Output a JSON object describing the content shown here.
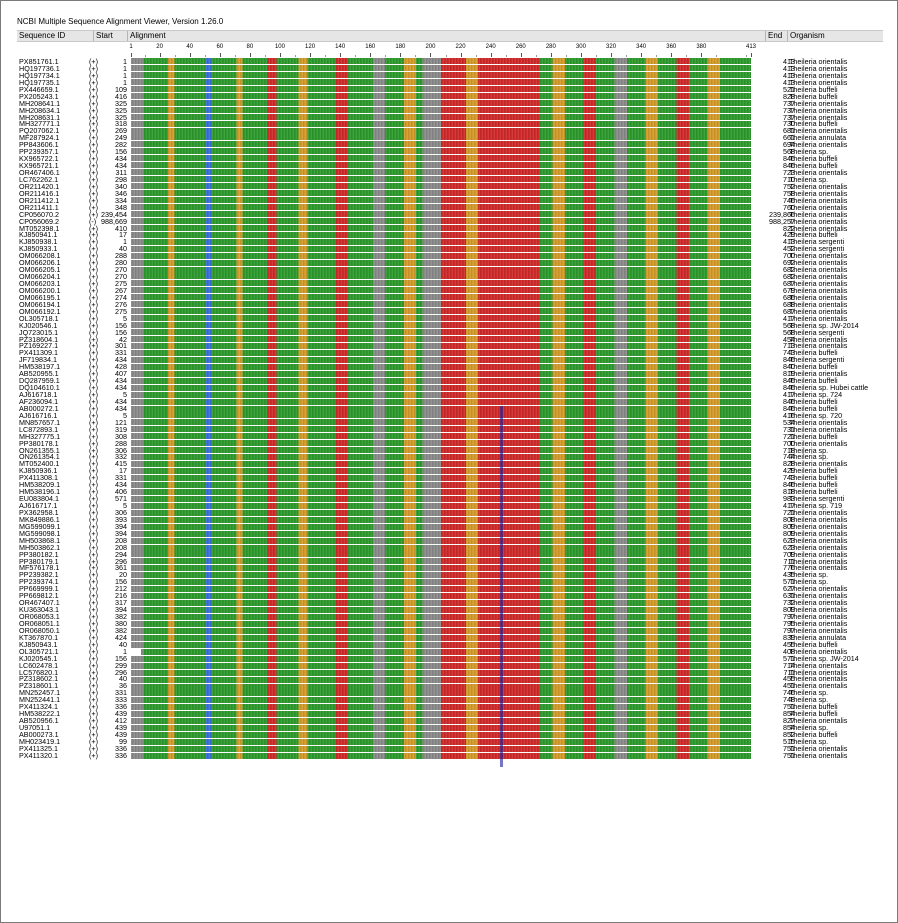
{
  "window": {
    "title": "NCBI Multiple Sequence Alignment Viewer, Version 1.26.0"
  },
  "columns": {
    "seqid": "Sequence ID",
    "start": "Start",
    "alignment": "Alignment",
    "end": "End",
    "organism": "Organism"
  },
  "ruler": {
    "labels": [
      "1",
      "20",
      "40",
      "60",
      "80",
      "100",
      "120",
      "140",
      "160",
      "180",
      "200",
      "220",
      "240",
      "260",
      "280",
      "300",
      "320",
      "340",
      "360",
      "380",
      "413"
    ]
  },
  "colors": {
    "A": "#2e9a2e",
    "C": "#3a6fd8",
    "G": "#d29a2a",
    "T": "#cf2b2b",
    "mix": "#8a8a8a",
    "lightA": "#6fcf6f",
    "lightT": "#e05a5a",
    "gap": "#ffffff",
    "marker": "#1a1aa0"
  },
  "rows": [
    {
      "id": "PX851761.1",
      "strand": "(+)",
      "start": "1",
      "end": "413",
      "org": "Theileria orientalis"
    },
    {
      "id": "HQ197736.1",
      "strand": "(+)",
      "start": "1",
      "end": "413",
      "org": "Theileria orientalis"
    },
    {
      "id": "HQ197734.1",
      "strand": "(+)",
      "start": "1",
      "end": "413",
      "org": "Theileria orientalis"
    },
    {
      "id": "HQ197735.1",
      "strand": "(+)",
      "start": "1",
      "end": "413",
      "org": "Theileria orientalis"
    },
    {
      "id": "PX446659.1",
      "strand": "(+)",
      "start": "109",
      "end": "521",
      "org": "Theileria buffeli"
    },
    {
      "id": "PX205243.1",
      "strand": "(+)",
      "start": "416",
      "end": "828",
      "org": "Theileria buffeli"
    },
    {
      "id": "MH208641.1",
      "strand": "(+)",
      "start": "325",
      "end": "737",
      "org": "Theileria orientalis"
    },
    {
      "id": "MH208634.1",
      "strand": "(+)",
      "start": "325",
      "end": "737",
      "org": "Theileria orientalis"
    },
    {
      "id": "MH208631.1",
      "strand": "(+)",
      "start": "325",
      "end": "737",
      "org": "Theileria orientalis"
    },
    {
      "id": "MH327771.1",
      "strand": "(+)",
      "start": "318",
      "end": "730",
      "org": "Theileria buffeli"
    },
    {
      "id": "PQ207062.1",
      "strand": "(+)",
      "start": "269",
      "end": "681",
      "org": "Theileria orientalis"
    },
    {
      "id": "MF287924.1",
      "strand": "(+)",
      "start": "249",
      "end": "661",
      "org": "Theileria annulata"
    },
    {
      "id": "PP843606.1",
      "strand": "(+)",
      "start": "282",
      "end": "694",
      "org": "Theileria orientalis"
    },
    {
      "id": "PP239357.1",
      "strand": "(+)",
      "start": "156",
      "end": "568",
      "org": "Theileria sp."
    },
    {
      "id": "KX965722.1",
      "strand": "(+)",
      "start": "434",
      "end": "846",
      "org": "Theileria buffeli"
    },
    {
      "id": "KX965721.1",
      "strand": "(+)",
      "start": "434",
      "end": "846",
      "org": "Theileria buffeli"
    },
    {
      "id": "OR467406.1",
      "strand": "(+)",
      "start": "311",
      "end": "723",
      "org": "Theileria orientalis"
    },
    {
      "id": "LC762262.1",
      "strand": "(+)",
      "start": "298",
      "end": "710",
      "org": "Theileria sp."
    },
    {
      "id": "OR211420.1",
      "strand": "(+)",
      "start": "340",
      "end": "752",
      "org": "Theileria orientalis"
    },
    {
      "id": "OR211416.1",
      "strand": "(+)",
      "start": "346",
      "end": "758",
      "org": "Theileria orientalis"
    },
    {
      "id": "OR211412.1",
      "strand": "(+)",
      "start": "334",
      "end": "746",
      "org": "Theileria orientalis"
    },
    {
      "id": "OR211411.1",
      "strand": "(+)",
      "start": "348",
      "end": "760",
      "org": "Theileria orientalis"
    },
    {
      "id": "CP056070.2",
      "strand": "(+)",
      "start": "239,454",
      "end": "239,866",
      "org": "Theileria orientalis"
    },
    {
      "id": "CP056069.2",
      "strand": "(-)",
      "start": "988,669",
      "end": "988,257",
      "org": "Theileria orientalis"
    },
    {
      "id": "MT052398.1",
      "strand": "(+)",
      "start": "410",
      "end": "822",
      "org": "Theileria orientalis"
    },
    {
      "id": "KJ850941.1",
      "strand": "(+)",
      "start": "17",
      "end": "429",
      "org": "Theileria buffeli"
    },
    {
      "id": "KJ850938.1",
      "strand": "(+)",
      "start": "1",
      "end": "413",
      "org": "Theileria sergenti"
    },
    {
      "id": "KJ850933.1",
      "strand": "(+)",
      "start": "40",
      "end": "452",
      "org": "Theileria sergenti"
    },
    {
      "id": "OM066208.1",
      "strand": "(+)",
      "start": "288",
      "end": "700",
      "org": "Theileria orientalis"
    },
    {
      "id": "OM066206.1",
      "strand": "(+)",
      "start": "280",
      "end": "692",
      "org": "Theileria orientalis"
    },
    {
      "id": "OM066205.1",
      "strand": "(+)",
      "start": "270",
      "end": "682",
      "org": "Theileria orientalis"
    },
    {
      "id": "OM066204.1",
      "strand": "(+)",
      "start": "270",
      "end": "682",
      "org": "Theileria orientalis"
    },
    {
      "id": "OM066203.1",
      "strand": "(+)",
      "start": "275",
      "end": "687",
      "org": "Theileria orientalis"
    },
    {
      "id": "OM066200.1",
      "strand": "(+)",
      "start": "267",
      "end": "679",
      "org": "Theileria orientalis"
    },
    {
      "id": "OM066195.1",
      "strand": "(+)",
      "start": "274",
      "end": "686",
      "org": "Theileria orientalis"
    },
    {
      "id": "OM066194.1",
      "strand": "(+)",
      "start": "276",
      "end": "688",
      "org": "Theileria orientalis"
    },
    {
      "id": "OM066192.1",
      "strand": "(+)",
      "start": "275",
      "end": "687",
      "org": "Theileria orientalis"
    },
    {
      "id": "OL305718.1",
      "strand": "(+)",
      "start": "5",
      "end": "417",
      "org": "Theileria orientalis"
    },
    {
      "id": "KJ020546.1",
      "strand": "(+)",
      "start": "156",
      "end": "568",
      "org": "Theileria sp. JW-2014"
    },
    {
      "id": "JQ723015.1",
      "strand": "(+)",
      "start": "156",
      "end": "568",
      "org": "Theileria sergenti"
    },
    {
      "id": "PZ318604.1",
      "strand": "(+)",
      "start": "42",
      "end": "454",
      "org": "Theileria orientalis"
    },
    {
      "id": "PZ169227.1",
      "strand": "(+)",
      "start": "301",
      "end": "713",
      "org": "Theileria orientalis"
    },
    {
      "id": "PX411309.1",
      "strand": "(+)",
      "start": "331",
      "end": "743",
      "org": "Theileria buffeli"
    },
    {
      "id": "JF719834.1",
      "strand": "(+)",
      "start": "434",
      "end": "846",
      "org": "Theileria sergenti"
    },
    {
      "id": "HM538197.1",
      "strand": "(+)",
      "start": "428",
      "end": "840",
      "org": "Theileria buffeli"
    },
    {
      "id": "AB520955.1",
      "strand": "(+)",
      "start": "407",
      "end": "819",
      "org": "Theileria orientalis"
    },
    {
      "id": "DQ287959.1",
      "strand": "(+)",
      "start": "434",
      "end": "846",
      "org": "Theileria buffeli"
    },
    {
      "id": "DQ104610.1",
      "strand": "(+)",
      "start": "434",
      "end": "846",
      "org": "Theileria sp. Hubei cattle"
    },
    {
      "id": "AJ616718.1",
      "strand": "(+)",
      "start": "5",
      "end": "417",
      "org": "Theileria sp. 724"
    },
    {
      "id": "AF236094.1",
      "strand": "(+)",
      "start": "434",
      "end": "846",
      "org": "Theileria buffeli"
    },
    {
      "id": "AB000272.1",
      "strand": "(+)",
      "start": "434",
      "end": "846",
      "org": "Theileria buffeli"
    },
    {
      "id": "AJ616716.1",
      "strand": "(+)",
      "start": "5",
      "end": "416",
      "org": "Theileria sp. 720"
    },
    {
      "id": "MN857657.1",
      "strand": "(+)",
      "start": "121",
      "end": "534",
      "org": "Theileria orientalis"
    },
    {
      "id": "LC872893.1",
      "strand": "(+)",
      "start": "319",
      "end": "731",
      "org": "Theileria orientalis"
    },
    {
      "id": "MH327775.1",
      "strand": "(+)",
      "start": "308",
      "end": "721",
      "org": "Theileria buffeli"
    },
    {
      "id": "PP380178.1",
      "strand": "(+)",
      "start": "288",
      "end": "700",
      "org": "Theileria orientalis"
    },
    {
      "id": "ON261355.1",
      "strand": "(+)",
      "start": "306",
      "end": "718",
      "org": "Theileria sp."
    },
    {
      "id": "ON261354.1",
      "strand": "(+)",
      "start": "332",
      "end": "744",
      "org": "Theileria sp."
    },
    {
      "id": "MT052400.1",
      "strand": "(+)",
      "start": "415",
      "end": "828",
      "org": "Theileria orientalis"
    },
    {
      "id": "KJ850936.1",
      "strand": "(+)",
      "start": "17",
      "end": "429",
      "org": "Theileria buffeli"
    },
    {
      "id": "PX411308.1",
      "strand": "(+)",
      "start": "331",
      "end": "743",
      "org": "Theileria buffeli"
    },
    {
      "id": "HM538209.1",
      "strand": "(+)",
      "start": "434",
      "end": "846",
      "org": "Theileria buffeli"
    },
    {
      "id": "HM538196.1",
      "strand": "(+)",
      "start": "406",
      "end": "818",
      "org": "Theileria buffeli"
    },
    {
      "id": "EU083804.1",
      "strand": "(+)",
      "start": "571",
      "end": "983",
      "org": "Theileria sergenti"
    },
    {
      "id": "AJ616717.1",
      "strand": "(+)",
      "start": "5",
      "end": "417",
      "org": "Theileria sp. 719"
    },
    {
      "id": "PX362958.1",
      "strand": "(+)",
      "start": "306",
      "end": "721",
      "org": "Theileria orientalis"
    },
    {
      "id": "MK849886.1",
      "strand": "(+)",
      "start": "393",
      "end": "808",
      "org": "Theileria orientalis"
    },
    {
      "id": "MG599099.1",
      "strand": "(+)",
      "start": "394",
      "end": "809",
      "org": "Theileria orientalis"
    },
    {
      "id": "MG599098.1",
      "strand": "(+)",
      "start": "394",
      "end": "809",
      "org": "Theileria orientalis"
    },
    {
      "id": "MH503868.1",
      "strand": "(+)",
      "start": "208",
      "end": "623",
      "org": "Theileria orientalis"
    },
    {
      "id": "MH503862.1",
      "strand": "(+)",
      "start": "208",
      "end": "623",
      "org": "Theileria orientalis"
    },
    {
      "id": "PP380182.1",
      "strand": "(+)",
      "start": "294",
      "end": "709",
      "org": "Theileria orientalis"
    },
    {
      "id": "PP380179.1",
      "strand": "(+)",
      "start": "296",
      "end": "711",
      "org": "Theileria orientalis"
    },
    {
      "id": "MF576178.1",
      "strand": "(+)",
      "start": "361",
      "end": "776",
      "org": "Theileria orientalis"
    },
    {
      "id": "PP239382.1",
      "strand": "(+)",
      "start": "20",
      "end": "435",
      "org": "Theileria sp."
    },
    {
      "id": "PP239374.1",
      "strand": "(+)",
      "start": "156",
      "end": "571",
      "org": "Theileria sp."
    },
    {
      "id": "PP669999.1",
      "strand": "(+)",
      "start": "212",
      "end": "627",
      "org": "Theileria orientalis"
    },
    {
      "id": "PP669812.1",
      "strand": "(+)",
      "start": "216",
      "end": "631",
      "org": "Theileria orientalis"
    },
    {
      "id": "OR467407.1",
      "strand": "(+)",
      "start": "317",
      "end": "732",
      "org": "Theileria orientalis"
    },
    {
      "id": "KU363043.1",
      "strand": "(+)",
      "start": "394",
      "end": "809",
      "org": "Theileria orientalis"
    },
    {
      "id": "OR068053.1",
      "strand": "(+)",
      "start": "382",
      "end": "797",
      "org": "Theileria orientalis"
    },
    {
      "id": "OR068051.1",
      "strand": "(+)",
      "start": "380",
      "end": "795",
      "org": "Theileria orientalis"
    },
    {
      "id": "OR068050.1",
      "strand": "(+)",
      "start": "382",
      "end": "797",
      "org": "Theileria orientalis"
    },
    {
      "id": "KT367870.1",
      "strand": "(+)",
      "start": "424",
      "end": "839",
      "org": "Theileria annulata"
    },
    {
      "id": "KJ850943.1",
      "strand": "(+)",
      "start": "40",
      "end": "455",
      "org": "Theileria buffeli"
    },
    {
      "id": "OL305721.1",
      "strand": "(+)",
      "start": "1",
      "end": "408",
      "org": "Theileria orientalis"
    },
    {
      "id": "KJ020545.1",
      "strand": "(+)",
      "start": "156",
      "end": "571",
      "org": "Theileria sp. JW-2014"
    },
    {
      "id": "LC602478.1",
      "strand": "(+)",
      "start": "299",
      "end": "714",
      "org": "Theileria orientalis"
    },
    {
      "id": "LC576820.1",
      "strand": "(+)",
      "start": "296",
      "end": "711",
      "org": "Theileria orientalis"
    },
    {
      "id": "PZ318602.1",
      "strand": "(+)",
      "start": "40",
      "end": "455",
      "org": "Theileria orientalis"
    },
    {
      "id": "PZ318601.1",
      "strand": "(+)",
      "start": "36",
      "end": "451",
      "org": "Theileria orientalis"
    },
    {
      "id": "MN252457.1",
      "strand": "(+)",
      "start": "331",
      "end": "746",
      "org": "Theileria sp."
    },
    {
      "id": "MN252441.1",
      "strand": "(+)",
      "start": "333",
      "end": "748",
      "org": "Theileria sp."
    },
    {
      "id": "PX411324.1",
      "strand": "(+)",
      "start": "336",
      "end": "751",
      "org": "Theileria buffeli"
    },
    {
      "id": "HM538222.1",
      "strand": "(+)",
      "start": "439",
      "end": "854",
      "org": "Theileria buffeli"
    },
    {
      "id": "AB520956.1",
      "strand": "(+)",
      "start": "412",
      "end": "827",
      "org": "Theileria orientalis"
    },
    {
      "id": "U97051.1",
      "strand": "(+)",
      "start": "439",
      "end": "854",
      "org": "Theileria sp."
    },
    {
      "id": "AB000273.1",
      "strand": "(+)",
      "start": "439",
      "end": "852",
      "org": "Theileria buffeli"
    },
    {
      "id": "MH023419.1",
      "strand": "(+)",
      "start": "99",
      "end": "515",
      "org": "Theileria sp."
    },
    {
      "id": "PX411325.1",
      "strand": "(+)",
      "start": "336",
      "end": "751",
      "org": "Theileria orientalis"
    },
    {
      "id": "PX411320.1",
      "strand": "(+)",
      "start": "336",
      "end": "751",
      "org": "Theileria orientalis"
    }
  ]
}
